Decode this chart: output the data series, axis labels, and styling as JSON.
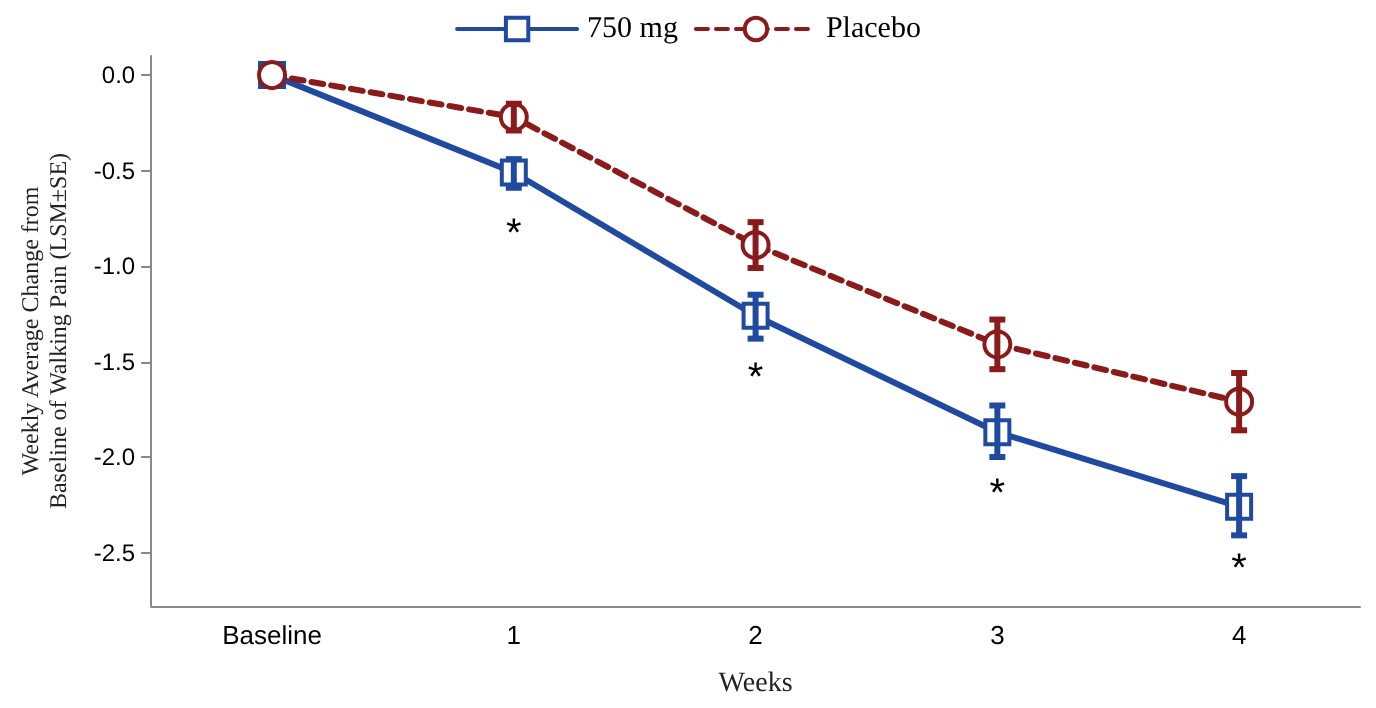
{
  "chart_data": {
    "type": "line",
    "xlabel": "Weeks",
    "ylabel": "Weekly Average Change from Baseline of Walking Pain (LSM±SE)",
    "categories": [
      "Baseline",
      "1",
      "2",
      "3",
      "4"
    ],
    "series": [
      {
        "name": "750 mg",
        "color": "#1f4aa0",
        "marker": "square",
        "line_style": "solid",
        "values": [
          0,
          -0.51,
          -1.26,
          -1.87,
          -2.26
        ],
        "errors": [
          null,
          [
            -0.59,
            -0.44
          ],
          [
            -1.38,
            -1.15
          ],
          [
            -2.0,
            -1.73
          ],
          [
            -2.41,
            -2.1
          ]
        ]
      },
      {
        "name": "Placebo",
        "color": "#8b1a1a",
        "marker": "circle",
        "line_style": "dashed",
        "values": [
          0,
          -0.22,
          -0.89,
          -1.41,
          -1.71
        ],
        "errors": [
          null,
          [
            -0.29,
            -0.15
          ],
          [
            -1.01,
            -0.77
          ],
          [
            -1.54,
            -1.28
          ],
          [
            -1.86,
            -1.56
          ]
        ]
      }
    ],
    "annotations": [
      {
        "text": "*",
        "x": "1",
        "y": -0.51
      },
      {
        "text": "*",
        "x": "2",
        "y": -1.26
      },
      {
        "text": "*",
        "x": "3",
        "y": -1.87
      },
      {
        "text": "*",
        "x": "4",
        "y": -2.26
      }
    ],
    "ylim": [
      -2.78,
      0.1
    ],
    "yticks": [
      {
        "value": 0,
        "label": "0.0"
      },
      {
        "value": -0.5,
        "label": "-0.5"
      },
      {
        "value": -1,
        "label": "-1.0"
      },
      {
        "value": -1.5,
        "label": "-1.5"
      },
      {
        "value": -2,
        "label": "-2.0"
      },
      {
        "value": -2.5,
        "label": "-2.5"
      }
    ],
    "legend": "top",
    "grid": false
  }
}
